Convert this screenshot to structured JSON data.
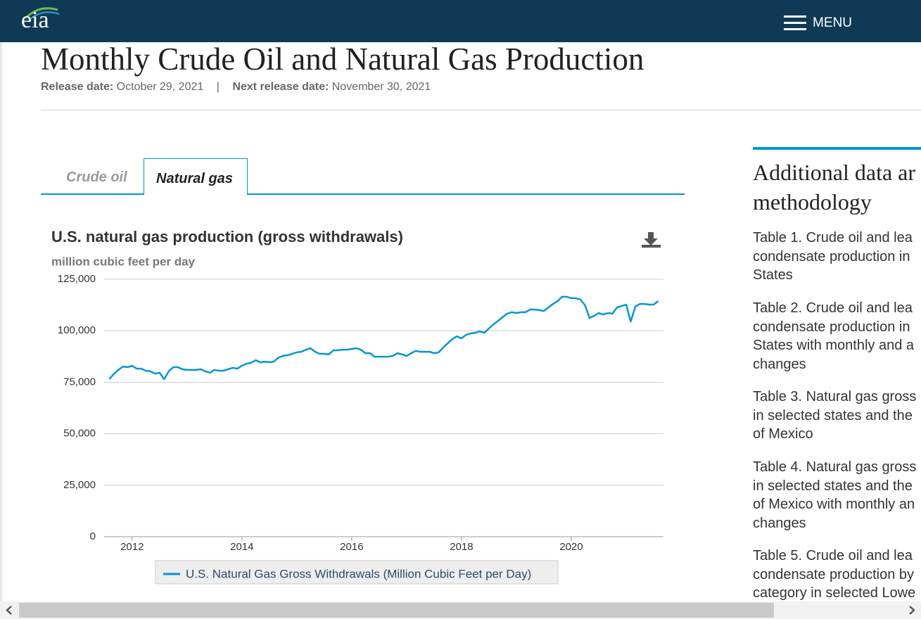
{
  "header": {
    "logo": "eia",
    "menu": "MENU"
  },
  "page": {
    "title": "Monthly Crude Oil and Natural Gas Production",
    "release_label": "Release date:",
    "release_date": "October 29, 2021",
    "separator": "|",
    "next_label": "Next release date:",
    "next_date": "November 30, 2021"
  },
  "tabs": [
    "Crude oil",
    "Natural gas"
  ],
  "sidebar": {
    "heading": [
      "Additional data ar",
      "methodology"
    ],
    "items": [
      [
        "Table 1. Crude oil and lea",
        "condensate production in",
        "States"
      ],
      [
        "Table 2. Crude oil and lea",
        "condensate production in",
        "States with monthly and a",
        "changes"
      ],
      [
        "Table 3. Natural gas gross",
        "in selected states and the",
        "of Mexico"
      ],
      [
        "Table 4. Natural gas gross",
        "in selected states and the",
        "of Mexico with monthly an",
        "changes"
      ],
      [
        "Table 5. Crude oil and lea",
        "condensate production by",
        "category in selected Lowe"
      ]
    ]
  },
  "chart_data": {
    "type": "line",
    "title": "U.S. natural gas production (gross withdrawals)",
    "subtitle": "million cubic feet per day",
    "x": [
      2011.583,
      2011.667,
      2011.75,
      2011.833,
      2011.917,
      2012.0,
      2012.083,
      2012.167,
      2012.25,
      2012.333,
      2012.417,
      2012.5,
      2012.583,
      2012.667,
      2012.75,
      2012.833,
      2012.917,
      2013.0,
      2013.083,
      2013.167,
      2013.25,
      2013.333,
      2013.417,
      2013.5,
      2013.583,
      2013.667,
      2013.75,
      2013.833,
      2013.917,
      2014.0,
      2014.083,
      2014.167,
      2014.25,
      2014.333,
      2014.417,
      2014.5,
      2014.583,
      2014.667,
      2014.75,
      2014.833,
      2014.917,
      2015.0,
      2015.083,
      2015.167,
      2015.25,
      2015.333,
      2015.417,
      2015.5,
      2015.583,
      2015.667,
      2015.75,
      2015.833,
      2015.917,
      2016.0,
      2016.083,
      2016.167,
      2016.25,
      2016.333,
      2016.417,
      2016.5,
      2016.583,
      2016.667,
      2016.75,
      2016.833,
      2016.917,
      2017.0,
      2017.083,
      2017.167,
      2017.25,
      2017.333,
      2017.417,
      2017.5,
      2017.583,
      2017.667,
      2017.75,
      2017.833,
      2017.917,
      2018.0,
      2018.083,
      2018.167,
      2018.25,
      2018.333,
      2018.417,
      2018.5,
      2018.583,
      2018.667,
      2018.75,
      2018.833,
      2018.917,
      2019.0,
      2019.083,
      2019.167,
      2019.25,
      2019.333,
      2019.417,
      2019.5,
      2019.583,
      2019.667,
      2019.75,
      2019.833,
      2019.917,
      2020.0,
      2020.083,
      2020.167,
      2020.25,
      2020.333,
      2020.417,
      2020.5,
      2020.583,
      2020.667,
      2020.75,
      2020.833,
      2020.917,
      2021.0,
      2021.083,
      2021.167,
      2021.25,
      2021.333,
      2021.417,
      2021.5,
      2021.583
    ],
    "series": [
      {
        "name": "U.S. Natural Gas Gross Withdrawals (Million Cubic Feet per Day)",
        "color": "#0096d6",
        "values": [
          76500,
          79000,
          81000,
          82600,
          82300,
          83000,
          81600,
          81600,
          80600,
          80300,
          79200,
          79600,
          76500,
          80300,
          82300,
          82300,
          81300,
          81000,
          81000,
          81000,
          81300,
          80300,
          79600,
          81000,
          80600,
          80600,
          81300,
          82000,
          81600,
          83000,
          84000,
          84400,
          85700,
          84700,
          85000,
          84700,
          85000,
          87000,
          87800,
          88100,
          88800,
          89500,
          89800,
          90800,
          91500,
          89800,
          88800,
          88800,
          88500,
          90500,
          90500,
          90800,
          90800,
          91200,
          91500,
          90800,
          89100,
          89100,
          87400,
          87400,
          87400,
          87400,
          87800,
          89100,
          88500,
          87800,
          89100,
          90200,
          89800,
          89800,
          89800,
          89100,
          89500,
          91900,
          93900,
          96000,
          97300,
          96300,
          98000,
          98700,
          99000,
          99700,
          99000,
          101100,
          103100,
          104800,
          106600,
          108300,
          109000,
          108600,
          109000,
          109000,
          110300,
          110300,
          110000,
          109600,
          111300,
          113000,
          114400,
          116500,
          116500,
          115800,
          115800,
          115100,
          112400,
          106200,
          107200,
          108600,
          107900,
          108600,
          108300,
          111300,
          112000,
          112700,
          104500,
          111700,
          113000,
          113000,
          112700,
          112700,
          114400
        ]
      }
    ],
    "xlim": [
      2011.49,
      2021.68
    ],
    "xticks": [
      2012,
      2014,
      2016,
      2018,
      2020
    ],
    "ylim": [
      0,
      125000
    ],
    "yticks": [
      0,
      {
        "value": 25000,
        "label": "25,000"
      },
      {
        "value": 50000,
        "label": "50,000"
      },
      {
        "value": 75000,
        "label": "75,000"
      },
      {
        "value": 100000,
        "label": "100,000"
      },
      {
        "value": 125000,
        "label": "125,000"
      }
    ],
    "grid": true
  }
}
